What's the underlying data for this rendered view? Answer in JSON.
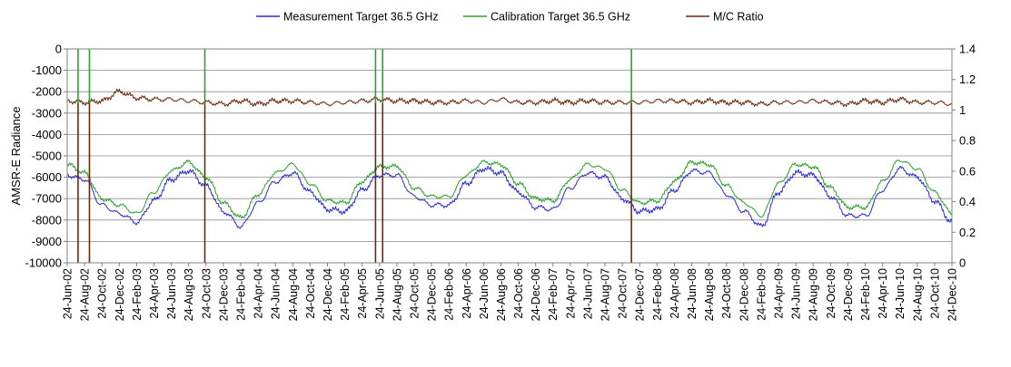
{
  "chart_data": {
    "type": "line",
    "title": "",
    "ylabel": "AMSR-E Radiance",
    "xlabel": "",
    "ylim": [
      -10000,
      0
    ],
    "y2lim": [
      0,
      1.4
    ],
    "yticks": [
      "0",
      "-1000",
      "-2000",
      "-3000",
      "-4000",
      "-5000",
      "-6000",
      "-7000",
      "-8000",
      "-9000",
      "-10000"
    ],
    "y2ticks": [
      "1.4",
      "1.2",
      "1",
      "0.8",
      "0.6",
      "0.4",
      "0.2",
      "0"
    ],
    "grid": "horizontal",
    "legend_position": "top",
    "x_tick_labels": [
      "24-Jun-02",
      "24-Aug-02",
      "24-Oct-02",
      "24-Dec-02",
      "24-Feb-03",
      "24-Apr-03",
      "24-Jun-03",
      "24-Aug-03",
      "24-Oct-03",
      "24-Dec-03",
      "24-Feb-04",
      "24-Apr-04",
      "24-Jun-04",
      "24-Aug-04",
      "24-Oct-04",
      "24-Dec-04",
      "24-Feb-05",
      "24-Apr-05",
      "24-Jun-05",
      "24-Aug-05",
      "24-Oct-05",
      "24-Dec-05",
      "24-Feb-06",
      "24-Apr-06",
      "24-Jun-06",
      "24-Aug-06",
      "24-Oct-06",
      "24-Dec-06",
      "24-Feb-07",
      "24-Apr-07",
      "24-Jun-07",
      "24-Aug-07",
      "24-Oct-07",
      "24-Dec-07",
      "24-Feb-08",
      "24-Apr-08",
      "24-Jun-08",
      "24-Aug-08",
      "24-Oct-08",
      "24-Dec-08",
      "24-Feb-09",
      "24-Apr-09",
      "24-Jun-09",
      "24-Aug-09",
      "24-Oct-09",
      "24-Dec-09",
      "24-Feb-10",
      "24-Apr-10",
      "24-Jun-10",
      "24-Aug-10",
      "24-Oct-10",
      "24-Dec-10"
    ],
    "series": [
      {
        "name": "Measurement Target 36.5 GHz",
        "axis": "left",
        "color": "#2b2bd6",
        "dates": [
          "2002-06-24",
          "2002-08-24",
          "2002-10-24",
          "2002-12-24",
          "2003-02-24",
          "2003-04-24",
          "2003-06-24",
          "2003-08-24",
          "2003-10-24",
          "2003-12-24",
          "2004-02-24",
          "2004-04-24",
          "2004-06-24",
          "2004-08-24",
          "2004-10-24",
          "2004-12-24",
          "2005-02-24",
          "2005-04-24",
          "2005-06-24",
          "2005-08-24",
          "2005-10-24",
          "2005-12-24",
          "2006-02-24",
          "2006-04-24",
          "2006-06-24",
          "2006-08-24",
          "2006-10-24",
          "2006-12-24",
          "2007-02-24",
          "2007-04-24",
          "2007-06-24",
          "2007-08-24",
          "2007-10-24",
          "2007-12-24",
          "2008-02-24",
          "2008-04-24",
          "2008-06-24",
          "2008-08-24",
          "2008-10-24",
          "2008-12-24",
          "2009-02-24",
          "2009-04-24",
          "2009-06-24",
          "2009-08-24",
          "2009-10-24",
          "2009-12-24",
          "2010-02-24",
          "2010-04-24",
          "2010-06-24",
          "2010-08-24",
          "2010-10-24",
          "2010-12-24"
        ],
        "values": [
          -5900,
          -6100,
          -7300,
          -7700,
          -8100,
          -7100,
          -6100,
          -5700,
          -6400,
          -7600,
          -8300,
          -7200,
          -6200,
          -5800,
          -6700,
          -7500,
          -7600,
          -6600,
          -5900,
          -5900,
          -6900,
          -7300,
          -7300,
          -6300,
          -5600,
          -5800,
          -6700,
          -7400,
          -7500,
          -6500,
          -5800,
          -6000,
          -7000,
          -7600,
          -7500,
          -6600,
          -5700,
          -5800,
          -6800,
          -7600,
          -8300,
          -6700,
          -5800,
          -5900,
          -6900,
          -7800,
          -7800,
          -6600,
          -5600,
          -6000,
          -7100,
          -8100
        ]
      },
      {
        "name": "Calibration Target 36.5 GHz",
        "axis": "left",
        "color": "#2ca02c",
        "dates": [
          "2002-06-24",
          "2002-08-24",
          "2002-10-24",
          "2002-12-24",
          "2003-02-24",
          "2003-04-24",
          "2003-06-24",
          "2003-08-24",
          "2003-10-24",
          "2003-12-24",
          "2004-02-24",
          "2004-04-24",
          "2004-06-24",
          "2004-08-24",
          "2004-10-24",
          "2004-12-24",
          "2005-02-24",
          "2005-04-24",
          "2005-06-24",
          "2005-08-24",
          "2005-10-24",
          "2005-12-24",
          "2006-02-24",
          "2006-04-24",
          "2006-06-24",
          "2006-08-24",
          "2006-10-24",
          "2006-12-24",
          "2007-02-24",
          "2007-04-24",
          "2007-06-24",
          "2007-08-24",
          "2007-10-24",
          "2007-12-24",
          "2008-02-24",
          "2008-04-24",
          "2008-06-24",
          "2008-08-24",
          "2008-10-24",
          "2008-12-24",
          "2009-02-24",
          "2009-04-24",
          "2009-06-24",
          "2009-08-24",
          "2009-10-24",
          "2009-12-24",
          "2010-02-24",
          "2010-04-24",
          "2010-06-24",
          "2010-08-24",
          "2010-10-24",
          "2010-12-24"
        ],
        "values": [
          -5400,
          -5800,
          -7000,
          -7300,
          -7700,
          -6700,
          -5700,
          -5300,
          -6000,
          -7200,
          -7900,
          -6800,
          -5800,
          -5400,
          -6300,
          -7100,
          -7200,
          -6200,
          -5500,
          -5500,
          -6500,
          -6900,
          -6900,
          -5900,
          -5300,
          -5400,
          -6300,
          -7000,
          -7100,
          -6100,
          -5400,
          -5600,
          -6600,
          -7200,
          -7100,
          -6200,
          -5300,
          -5400,
          -6400,
          -7200,
          -7800,
          -6300,
          -5400,
          -5500,
          -6500,
          -7400,
          -7400,
          -6200,
          -5200,
          -5600,
          -6700,
          -7700
        ]
      },
      {
        "name": "M/C Ratio",
        "axis": "right",
        "color": "#6b2a0c",
        "dates": [
          "2002-06-24",
          "2002-08-24",
          "2002-10-24",
          "2002-12-24",
          "2003-02-24",
          "2003-04-24",
          "2003-06-24",
          "2003-08-24",
          "2003-10-24",
          "2003-12-24",
          "2004-02-24",
          "2004-04-24",
          "2004-06-24",
          "2004-08-24",
          "2004-10-24",
          "2004-12-24",
          "2005-02-24",
          "2005-04-24",
          "2005-06-24",
          "2005-08-24",
          "2005-10-24",
          "2005-12-24",
          "2006-02-24",
          "2006-04-24",
          "2006-06-24",
          "2006-08-24",
          "2006-10-24",
          "2006-12-24",
          "2007-02-24",
          "2007-04-24",
          "2007-06-24",
          "2007-08-24",
          "2007-10-24",
          "2007-12-24",
          "2008-02-24",
          "2008-04-24",
          "2008-06-24",
          "2008-08-24",
          "2008-10-24",
          "2008-12-24",
          "2009-02-24",
          "2009-04-24",
          "2009-06-24",
          "2009-08-24",
          "2009-10-24",
          "2009-12-24",
          "2010-02-24",
          "2010-04-24",
          "2010-06-24",
          "2010-08-24",
          "2010-10-24",
          "2010-12-24"
        ],
        "values": [
          1.06,
          1.05,
          1.06,
          1.12,
          1.08,
          1.07,
          1.07,
          1.06,
          1.05,
          1.04,
          1.06,
          1.04,
          1.06,
          1.06,
          1.05,
          1.04,
          1.05,
          1.06,
          1.07,
          1.06,
          1.06,
          1.05,
          1.05,
          1.06,
          1.05,
          1.07,
          1.05,
          1.05,
          1.06,
          1.05,
          1.06,
          1.05,
          1.05,
          1.05,
          1.06,
          1.06,
          1.05,
          1.06,
          1.05,
          1.05,
          1.04,
          1.05,
          1.05,
          1.06,
          1.05,
          1.04,
          1.06,
          1.05,
          1.07,
          1.05,
          1.05,
          1.04
        ]
      }
    ],
    "spikes": [
      {
        "date": "2002-08-01",
        "series": "M/C Ratio",
        "value": 0
      },
      {
        "date": "2002-08-01",
        "series": "Calibration Target 36.5 GHz",
        "value": 0
      },
      {
        "date": "2002-09-10",
        "series": "M/C Ratio",
        "value": 0
      },
      {
        "date": "2002-09-10",
        "series": "Calibration Target 36.5 GHz",
        "value": 0
      },
      {
        "date": "2003-10-20",
        "series": "M/C Ratio",
        "value": 0
      },
      {
        "date": "2003-10-20",
        "series": "Calibration Target 36.5 GHz",
        "value": 0
      },
      {
        "date": "2005-06-10",
        "series": "M/C Ratio",
        "value": 0
      },
      {
        "date": "2005-07-05",
        "series": "M/C Ratio",
        "value": 0
      },
      {
        "date": "2005-06-10",
        "series": "Calibration Target 36.5 GHz",
        "value": 0
      },
      {
        "date": "2005-07-05",
        "series": "Calibration Target 36.5 GHz",
        "value": 0
      },
      {
        "date": "2007-11-25",
        "series": "M/C Ratio",
        "value": 0
      },
      {
        "date": "2007-11-25",
        "series": "Calibration Target 36.5 GHz",
        "value": 0
      }
    ]
  }
}
